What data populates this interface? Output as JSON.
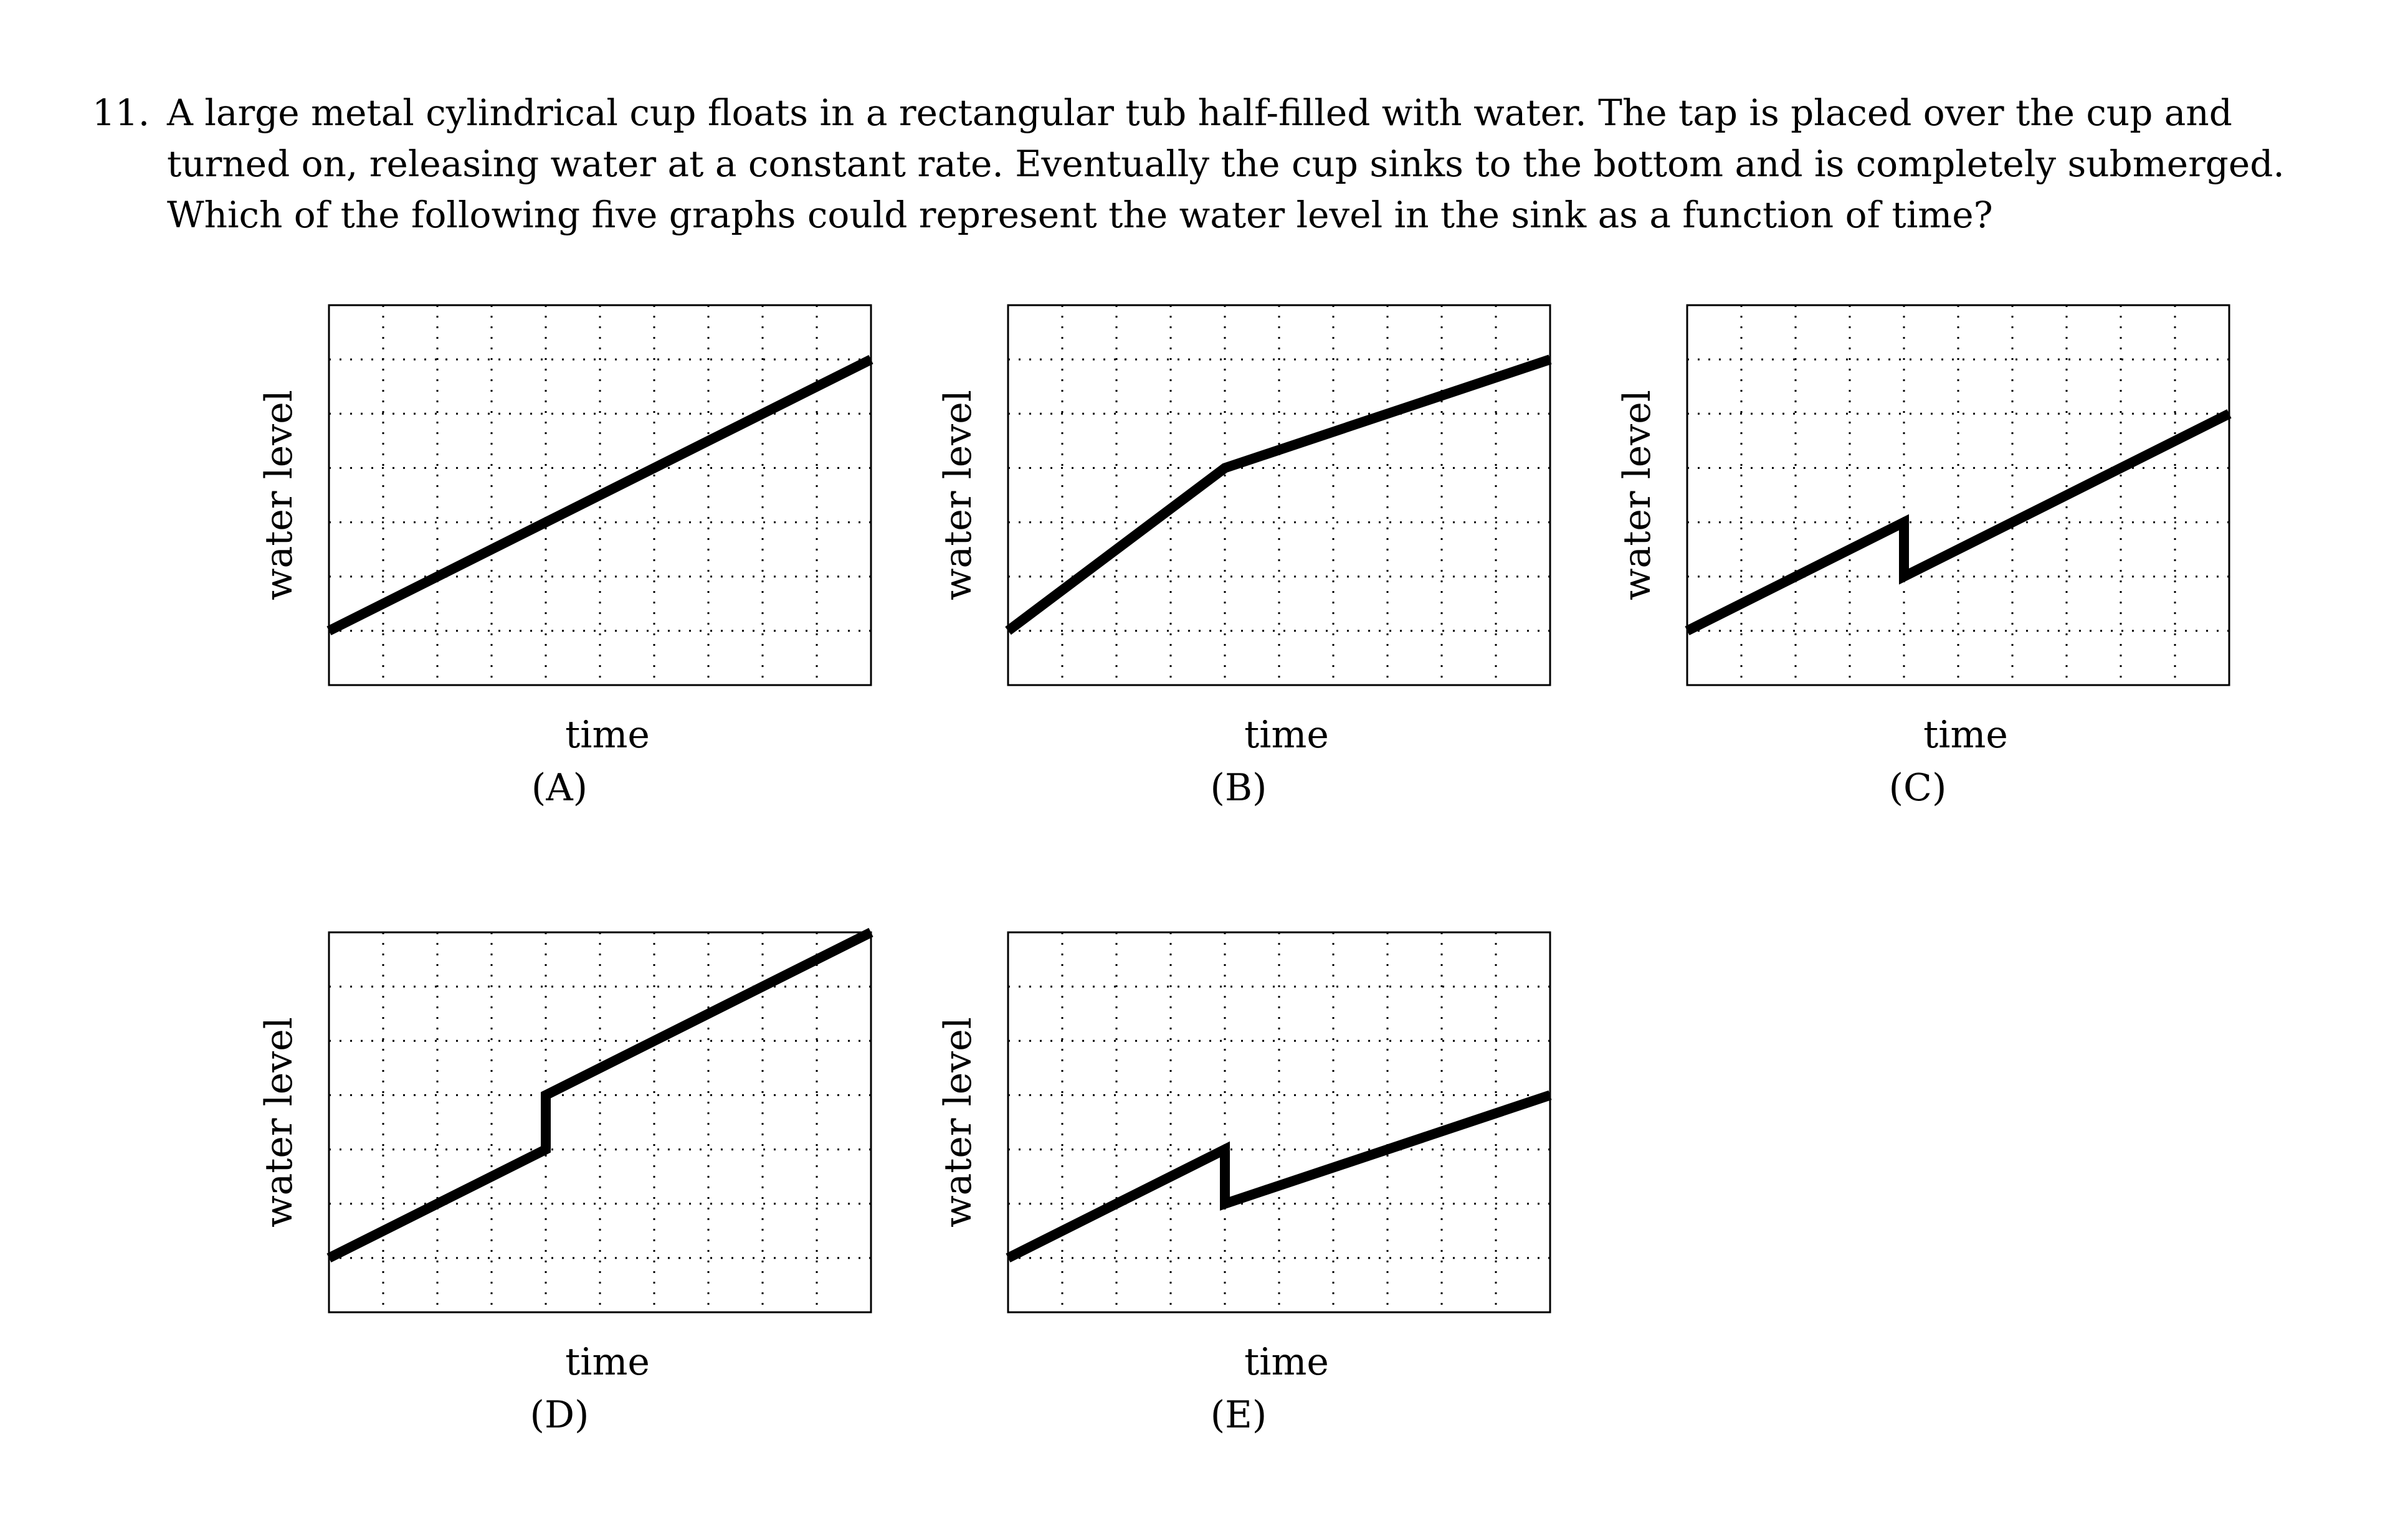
{
  "question": {
    "number": "11.",
    "lines": [
      "A large metal cylindrical cup floats in a rectangular tub half-filled with water. The tap is placed over the cup and",
      "turned on, releasing water at a constant rate. Eventually the cup sinks to the bottom and is completely submerged.",
      "Which of the following five graphs could represent the water level in the sink as a function of time?"
    ]
  },
  "colors": {
    "line": "#000000",
    "grid": "#000000",
    "frame": "#000000"
  },
  "chart_data": [
    {
      "type": "line",
      "label": "(A)",
      "xlabel": "time",
      "ylabel": "water level",
      "xlim": [
        0,
        10
      ],
      "ylim": [
        0,
        7
      ],
      "grid": true,
      "x": [
        0,
        10
      ],
      "y": [
        1,
        6
      ]
    },
    {
      "type": "line",
      "label": "(B)",
      "xlabel": "time",
      "ylabel": "water level",
      "xlim": [
        0,
        10
      ],
      "ylim": [
        0,
        7
      ],
      "grid": true,
      "x": [
        0,
        4,
        10
      ],
      "y": [
        1,
        4,
        6
      ]
    },
    {
      "type": "line",
      "label": "(C)",
      "xlabel": "time",
      "ylabel": "water level",
      "xlim": [
        0,
        10
      ],
      "ylim": [
        0,
        7
      ],
      "grid": true,
      "x": [
        0,
        4,
        4,
        10
      ],
      "y": [
        1,
        3,
        2,
        5
      ]
    },
    {
      "type": "line",
      "label": "(D)",
      "xlabel": "time",
      "ylabel": "water level",
      "xlim": [
        0,
        10
      ],
      "ylim": [
        0,
        7
      ],
      "grid": true,
      "x": [
        0,
        4,
        4,
        10
      ],
      "y": [
        1,
        3,
        4,
        7
      ]
    },
    {
      "type": "line",
      "label": "(E)",
      "xlabel": "time",
      "ylabel": "water level",
      "xlim": [
        0,
        10
      ],
      "ylim": [
        0,
        7
      ],
      "grid": true,
      "x": [
        0,
        4,
        4,
        10
      ],
      "y": [
        1,
        3,
        2,
        4
      ]
    }
  ]
}
